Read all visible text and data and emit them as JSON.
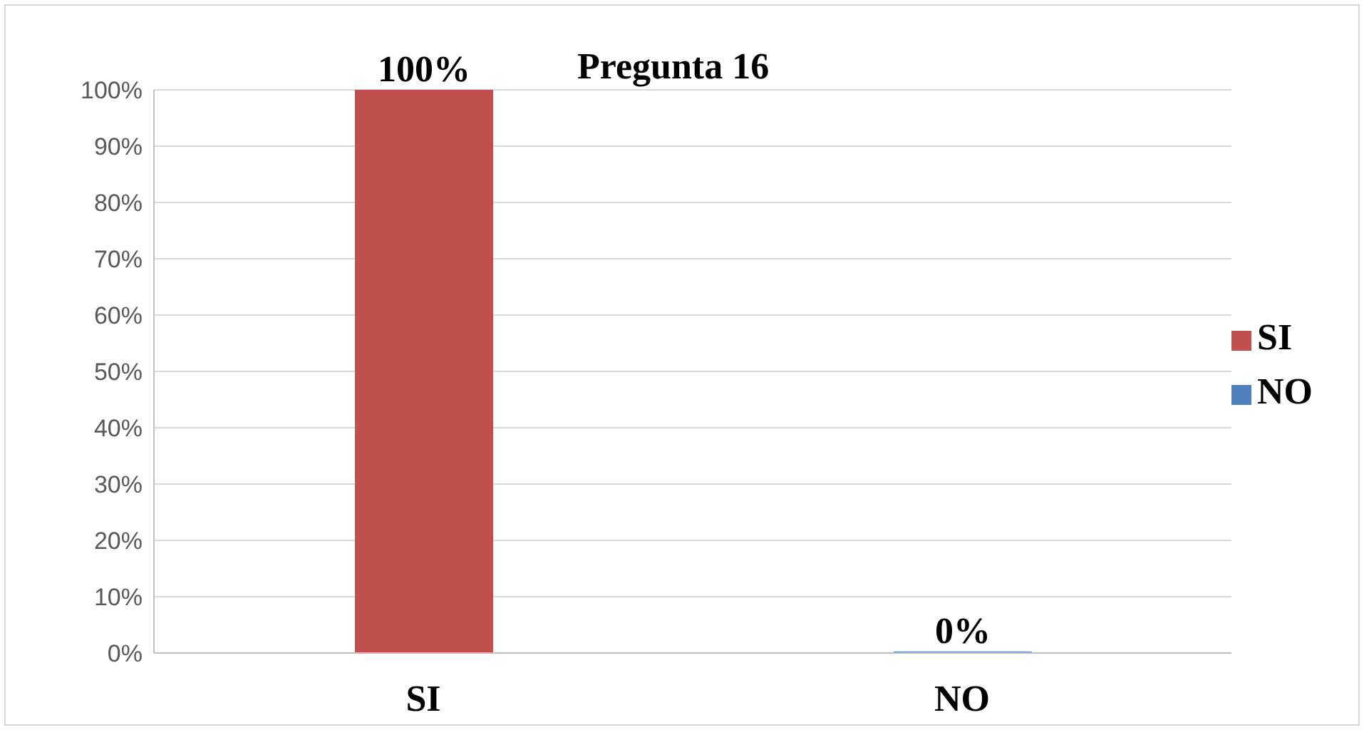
{
  "chart_data": {
    "type": "bar",
    "title": "Pregunta 16",
    "categories": [
      "SI",
      "NO"
    ],
    "series": [
      {
        "name": "SI",
        "color": "#c0504d",
        "values": [
          100,
          null
        ],
        "value_labels": [
          "100%",
          null
        ]
      },
      {
        "name": "NO",
        "color": "#4f81bd",
        "values": [
          null,
          0
        ],
        "value_labels": [
          null,
          "0%"
        ]
      }
    ],
    "ylim": [
      0,
      100
    ],
    "yticks": [
      {
        "value": 0,
        "label": "0%"
      },
      {
        "value": 10,
        "label": "10%"
      },
      {
        "value": 20,
        "label": "20%"
      },
      {
        "value": 30,
        "label": "30%"
      },
      {
        "value": 40,
        "label": "40%"
      },
      {
        "value": 50,
        "label": "50%"
      },
      {
        "value": 60,
        "label": "60%"
      },
      {
        "value": 70,
        "label": "70%"
      },
      {
        "value": 80,
        "label": "80%"
      },
      {
        "value": 90,
        "label": "90%"
      },
      {
        "value": 100,
        "label": "100%"
      }
    ],
    "grid": "y",
    "legend": "right"
  }
}
